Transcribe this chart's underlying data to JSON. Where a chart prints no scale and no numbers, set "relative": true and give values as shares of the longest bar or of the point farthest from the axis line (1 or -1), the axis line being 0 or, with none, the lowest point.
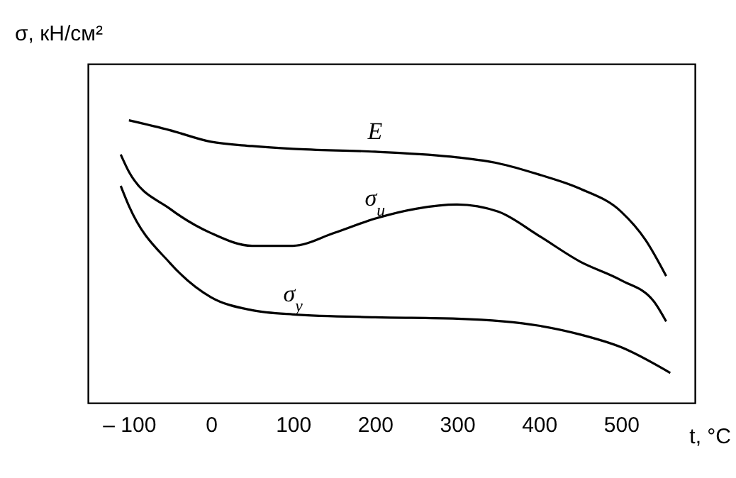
{
  "chart_data": {
    "type": "line",
    "relative": true,
    "ylabel": "σ, кН/см²",
    "xlabel": "t, °C",
    "xlim": [
      -150,
      590
    ],
    "xticks": [
      {
        "value": -100,
        "label": "– 100"
      },
      0,
      100,
      200,
      300,
      400,
      500
    ],
    "legend": false,
    "marker": "none",
    "line_style": "solid",
    "series": [
      {
        "name": "E",
        "color": "#000000",
        "x": [
          -100,
          -50,
          0,
          50,
          100,
          200,
          300,
          350,
          400,
          450,
          500,
          530,
          555
        ],
        "values": [
          1,
          0.965,
          0.924,
          0.909,
          0.899,
          0.889,
          0.869,
          0.848,
          0.808,
          0.758,
          0.677,
          0.576,
          0.449
        ]
      },
      {
        "name": "σ$_{u}$",
        "color": "#000000",
        "x": [
          -110,
          -100,
          -50,
          0,
          50,
          100,
          150,
          200,
          250,
          300,
          350,
          400,
          450,
          500,
          540,
          555
        ],
        "values": [
          0.879,
          0.818,
          0.687,
          0.601,
          0.556,
          0.556,
          0.601,
          0.652,
          0.687,
          0.702,
          0.677,
          0.591,
          0.5,
          0.434,
          0.359,
          0.288
        ]
      },
      {
        "name": "σ$_{y}$",
        "color": "#000000",
        "x": [
          -110,
          -100,
          -50,
          0,
          50,
          100,
          200,
          300,
          400,
          450,
          500,
          560
        ],
        "values": [
          0.768,
          0.697,
          0.495,
          0.374,
          0.328,
          0.313,
          0.303,
          0.298,
          0.273,
          0.242,
          0.197,
          0.106
        ]
      }
    ]
  }
}
